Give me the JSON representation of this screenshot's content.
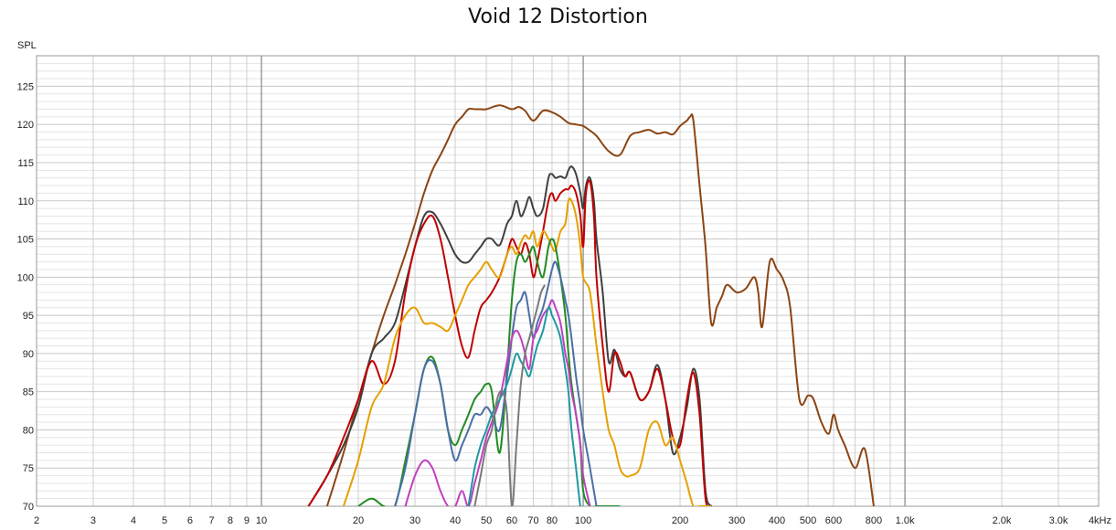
{
  "chart_data": {
    "type": "line",
    "title": "Void 12 Distortion",
    "ylabel": "SPL",
    "xscale": "log",
    "xlim": [
      2,
      4000
    ],
    "ylim": [
      70,
      129
    ],
    "grid": true,
    "xticks": [
      {
        "v": 2,
        "label": "2"
      },
      {
        "v": 3,
        "label": "3"
      },
      {
        "v": 4,
        "label": "4"
      },
      {
        "v": 5,
        "label": "5"
      },
      {
        "v": 6,
        "label": "6"
      },
      {
        "v": 7,
        "label": "7"
      },
      {
        "v": 8,
        "label": "8"
      },
      {
        "v": 9,
        "label": "9"
      },
      {
        "v": 10,
        "label": "10"
      },
      {
        "v": 20,
        "label": "20"
      },
      {
        "v": 30,
        "label": "30"
      },
      {
        "v": 40,
        "label": "40"
      },
      {
        "v": 50,
        "label": "50"
      },
      {
        "v": 60,
        "label": "60"
      },
      {
        "v": 70,
        "label": "70"
      },
      {
        "v": 80,
        "label": "80"
      },
      {
        "v": 100,
        "label": "100"
      },
      {
        "v": 200,
        "label": "200"
      },
      {
        "v": 300,
        "label": "300"
      },
      {
        "v": 400,
        "label": "400"
      },
      {
        "v": 500,
        "label": "500"
      },
      {
        "v": 600,
        "label": "600"
      },
      {
        "v": 800,
        "label": "800"
      },
      {
        "v": 1000,
        "label": "1.0k"
      },
      {
        "v": 2000,
        "label": "2.0k"
      },
      {
        "v": 3000,
        "label": "3.0k"
      },
      {
        "v": 4000,
        "label": "4kHz"
      }
    ],
    "yticks": [
      70,
      75,
      80,
      85,
      90,
      95,
      100,
      105,
      110,
      115,
      120,
      125
    ],
    "series": [
      {
        "color": "#8b4513",
        "x": [
          16,
          18,
          20,
          22,
          24,
          26,
          28,
          30,
          32,
          34,
          36,
          38,
          40,
          42,
          44,
          46,
          48,
          50,
          55,
          60,
          63,
          66,
          70,
          75,
          80,
          85,
          90,
          95,
          100,
          105,
          110,
          120,
          130,
          140,
          150,
          160,
          170,
          180,
          190,
          200,
          210,
          215,
          220,
          230,
          240,
          250,
          260,
          270,
          280,
          300,
          320,
          340,
          350,
          360,
          380,
          400,
          420,
          440,
          470,
          500,
          520,
          550,
          580,
          600,
          620,
          650,
          700,
          750,
          800
        ],
        "y": [
          70,
          77,
          84,
          90,
          95,
          99,
          103,
          107,
          111,
          114,
          116,
          118,
          120,
          121,
          122,
          122,
          122,
          122,
          122.5,
          122,
          122.3,
          121.8,
          120.5,
          121.8,
          121.6,
          121,
          120.2,
          120,
          119.8,
          119.2,
          118.5,
          116.5,
          116,
          118.5,
          119,
          119.3,
          118.8,
          119,
          118.7,
          119.8,
          120.5,
          121,
          120.5,
          112,
          104,
          94,
          96,
          97.5,
          99,
          98,
          98.5,
          100,
          98,
          93.5,
          102,
          101,
          99.5,
          96,
          84,
          84.5,
          84,
          81,
          79.5,
          82,
          80,
          78,
          75,
          77.5,
          70
        ]
      },
      {
        "color": "#404040",
        "x": [
          14,
          16,
          18,
          20,
          22,
          24,
          26,
          28,
          30,
          32,
          34,
          36,
          38,
          40,
          42,
          44,
          46,
          48,
          50,
          52,
          55,
          58,
          60,
          62,
          64,
          66,
          68,
          70,
          72,
          75,
          78,
          80,
          82,
          85,
          88,
          90,
          92,
          95,
          98,
          100,
          102,
          105,
          108,
          110,
          115,
          120,
          125,
          130,
          135,
          140,
          150,
          160,
          170,
          180,
          190,
          200,
          210,
          220,
          230,
          240,
          250
        ],
        "y": [
          70,
          74,
          78,
          83,
          90,
          92,
          94,
          99,
          104,
          108,
          108.5,
          107,
          105,
          103,
          102,
          102,
          103,
          104,
          105,
          105,
          104.2,
          107,
          108,
          110,
          108,
          109,
          110.5,
          109,
          108,
          109,
          113,
          113.5,
          113,
          113.2,
          113,
          114,
          114.5,
          113.5,
          111,
          109,
          112,
          113,
          110,
          105,
          98,
          89,
          90.5,
          88,
          87,
          87.5,
          84,
          85,
          88.5,
          84,
          77,
          79,
          83,
          88,
          84,
          72,
          70
        ]
      },
      {
        "color": "#c00000",
        "x": [
          14,
          16,
          18,
          20,
          22,
          24,
          26,
          28,
          30,
          32,
          34,
          36,
          38,
          40,
          42,
          44,
          46,
          48,
          50,
          52,
          55,
          58,
          60,
          62,
          64,
          66,
          68,
          70,
          72,
          75,
          78,
          80,
          82,
          85,
          88,
          90,
          92,
          95,
          98,
          100,
          102,
          105,
          108,
          110,
          115,
          120,
          125,
          130,
          135,
          140,
          150,
          160,
          170,
          180,
          190,
          200,
          210,
          220,
          230,
          240,
          250
        ],
        "y": [
          70,
          74,
          79,
          84,
          89,
          86,
          89,
          98,
          104,
          107,
          108,
          105,
          100,
          95,
          91,
          89.5,
          93,
          96,
          97,
          98,
          100,
          103,
          105,
          104,
          103,
          104.5,
          103,
          100,
          102,
          106,
          110,
          111,
          110,
          111,
          111.5,
          111.5,
          112,
          111,
          108,
          104,
          111,
          112.5,
          108,
          100,
          91,
          85,
          90,
          89,
          87,
          87.5,
          84,
          85,
          88,
          84,
          79,
          78,
          84,
          87.5,
          82,
          71,
          70
        ]
      },
      {
        "color": "#e6a000",
        "x": [
          18,
          20,
          22,
          24,
          26,
          28,
          30,
          32,
          34,
          36,
          38,
          40,
          42,
          44,
          46,
          48,
          50,
          52,
          55,
          58,
          60,
          62,
          64,
          66,
          68,
          70,
          72,
          75,
          78,
          80,
          82,
          85,
          88,
          90,
          92,
          95,
          98,
          100,
          105,
          110,
          115,
          120,
          125,
          130,
          135,
          140,
          150,
          160,
          170,
          180,
          190,
          200,
          210,
          220,
          230,
          240,
          250
        ],
        "y": [
          70,
          76,
          83,
          86,
          92,
          95,
          96,
          94,
          94,
          93.5,
          93,
          95,
          97,
          99,
          100,
          101,
          102,
          101,
          100,
          103,
          104,
          103,
          104.5,
          105.5,
          105,
          106,
          104,
          106,
          105,
          104,
          103.5,
          106,
          107,
          110,
          110,
          108,
          104,
          100,
          98,
          91,
          85,
          80,
          78,
          75,
          74,
          74,
          75,
          80,
          81,
          78,
          79,
          76,
          73,
          70,
          70,
          70,
          70
        ]
      },
      {
        "color": "#228b22",
        "x": [
          20,
          22,
          24,
          26,
          28,
          30,
          32,
          34,
          36,
          38,
          40,
          42,
          44,
          46,
          48,
          50,
          52,
          55,
          58,
          60,
          62,
          64,
          66,
          68,
          70,
          72,
          75,
          78,
          80,
          82,
          85,
          88,
          90,
          92,
          95,
          98,
          100,
          105,
          110,
          115,
          120,
          125,
          130
        ],
        "y": [
          70,
          71,
          70,
          70,
          76,
          82,
          88,
          89.5,
          86,
          80,
          78,
          80,
          82,
          84,
          85,
          86,
          85,
          77,
          88,
          97,
          102,
          103,
          102,
          103,
          104,
          102,
          100,
          104,
          105,
          104,
          100,
          95,
          90,
          86,
          82,
          78,
          72,
          70,
          70,
          70,
          70,
          70,
          70
        ]
      },
      {
        "color": "#4a6fa5",
        "x": [
          26,
          28,
          30,
          32,
          34,
          36,
          38,
          40,
          42,
          44,
          46,
          48,
          50,
          52,
          55,
          58,
          60,
          62,
          64,
          66,
          68,
          70,
          72,
          75,
          78,
          80,
          82,
          85,
          88,
          90,
          92,
          95,
          98,
          100,
          105,
          110
        ],
        "y": [
          70,
          75,
          82,
          88,
          89,
          86,
          80,
          76,
          78,
          80,
          82,
          82,
          83,
          82,
          80,
          87,
          92,
          96,
          97,
          98,
          95,
          92,
          94,
          96,
          99,
          101,
          102,
          100,
          97,
          95,
          92,
          87,
          83,
          80,
          75,
          70
        ]
      },
      {
        "color": "#c040c0",
        "x": [
          28,
          30,
          32,
          34,
          36,
          38,
          40,
          42,
          44,
          46,
          48,
          50,
          52,
          55,
          58,
          60,
          62,
          64,
          66,
          68,
          70,
          72,
          75,
          78,
          80,
          82,
          85,
          88,
          90,
          92,
          95,
          98,
          100,
          105
        ],
        "y": [
          70,
          74,
          76,
          75,
          72,
          70,
          70,
          72,
          70,
          73,
          76,
          79,
          81,
          84,
          89,
          92,
          93,
          92,
          90,
          88,
          92,
          93,
          95,
          96,
          97,
          96,
          94,
          90,
          88,
          85,
          82,
          78,
          74,
          70
        ]
      },
      {
        "color": "#1e9aa0",
        "x": [
          44,
          46,
          48,
          50,
          52,
          55,
          58,
          60,
          62,
          64,
          66,
          68,
          70,
          72,
          75,
          78,
          80,
          82,
          85,
          88,
          90,
          92,
          95,
          98,
          100
        ],
        "y": [
          70,
          75,
          78,
          80,
          82,
          84,
          86,
          88,
          90,
          89,
          88,
          87,
          89,
          91,
          93,
          96,
          95,
          94,
          92,
          88,
          85,
          80,
          75,
          70,
          70
        ]
      },
      {
        "color": "#7a7a7a",
        "x": [
          46,
          48,
          50,
          52,
          54,
          56,
          58,
          60,
          62,
          64,
          66,
          68,
          70,
          72,
          74,
          76
        ],
        "y": [
          70,
          74,
          78,
          80,
          84,
          85,
          82,
          70,
          78,
          86,
          90,
          92,
          94,
          96,
          98,
          99
        ]
      }
    ]
  }
}
